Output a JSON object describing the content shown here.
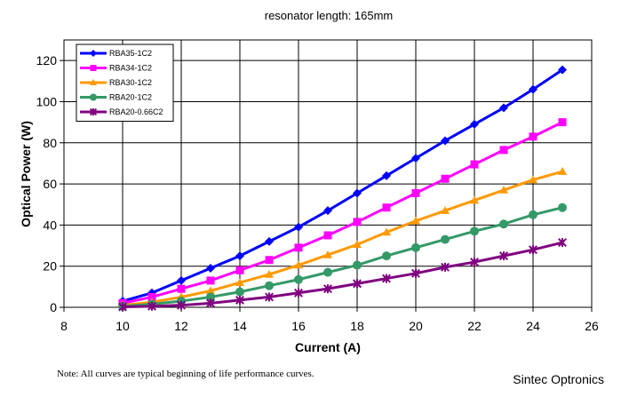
{
  "chart_data": {
    "type": "line",
    "title": "resonator length: 165mm",
    "xlabel": "Current (A)",
    "ylabel": "Optical Power (W)",
    "xlim": [
      8,
      26
    ],
    "ylim": [
      0,
      130
    ],
    "xticks": [
      8,
      10,
      12,
      14,
      16,
      18,
      20,
      22,
      24,
      26
    ],
    "yticks": [
      0,
      20,
      40,
      60,
      80,
      100,
      120
    ],
    "grid": true,
    "legend_position": "top-left",
    "x": [
      10,
      11,
      12,
      13,
      14,
      15,
      16,
      17,
      18,
      19,
      20,
      21,
      22,
      23,
      24,
      25
    ],
    "series": [
      {
        "name": "RBA35-1C2",
        "color": "#0000ff",
        "marker": "diamond",
        "values": [
          3,
          7,
          13,
          19,
          25,
          32,
          39,
          47,
          55.5,
          64,
          72.5,
          81,
          89,
          97,
          106,
          115.5
        ]
      },
      {
        "name": "RBA34-1C2",
        "color": "#ff00ff",
        "marker": "square",
        "values": [
          2,
          5,
          9,
          13,
          18,
          23,
          29,
          35,
          41.5,
          48.5,
          55.5,
          62.5,
          69.5,
          76.5,
          83,
          90
        ]
      },
      {
        "name": "RBA30-1C2",
        "color": "#ff9900",
        "marker": "triangle",
        "values": [
          1,
          2.5,
          5,
          8,
          12,
          16,
          20.5,
          25.5,
          30.5,
          36.5,
          42,
          47,
          52,
          57,
          62,
          66
        ]
      },
      {
        "name": "RBA20-1C2",
        "color": "#339966",
        "marker": "circle",
        "values": [
          0.5,
          1.5,
          3,
          5,
          7.5,
          10.5,
          13.5,
          17,
          20.5,
          25,
          29,
          33,
          37,
          40.5,
          45,
          48.5
        ]
      },
      {
        "name": "RBA20-0.66C2",
        "color": "#800080",
        "marker": "asterisk",
        "values": [
          0.2,
          0.5,
          1,
          2,
          3.5,
          5,
          7,
          9,
          11.5,
          14,
          16.5,
          19.5,
          22,
          25,
          28,
          31.5
        ]
      }
    ]
  },
  "footer": {
    "note": "Note: All curves are typical beginning of life performance curves.",
    "brand": "Sintec Optronics"
  }
}
